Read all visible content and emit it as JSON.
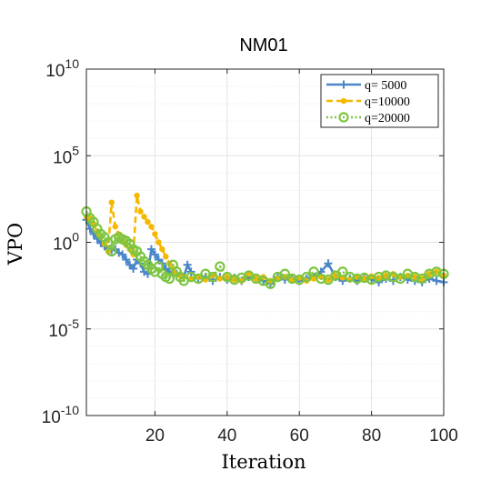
{
  "chart_data": {
    "type": "line",
    "title": "NM01",
    "xlabel": "Iteration",
    "ylabel": "VPO",
    "yscale": "log",
    "xlim": [
      1,
      100
    ],
    "ylim": [
      1e-10,
      10000000000.0
    ],
    "xticks": [
      20,
      40,
      60,
      80,
      100
    ],
    "yticks": [
      {
        "base": "10",
        "exp": "10"
      },
      {
        "base": "10",
        "exp": "5"
      },
      {
        "base": "10",
        "exp": "0"
      },
      {
        "base": "10",
        "exp": "-5"
      },
      {
        "base": "10",
        "exp": "-10"
      }
    ],
    "grid": true,
    "minor_grid": true,
    "legend_position": "top-right",
    "series": [
      {
        "name": "q= 5000",
        "color": "#4a86c8",
        "marker": "plus",
        "line": "solid",
        "points": [
          [
            1,
            20
          ],
          [
            2,
            6
          ],
          [
            3,
            3
          ],
          [
            4,
            1.6
          ],
          [
            5,
            0.9
          ],
          [
            6,
            0.6
          ],
          [
            7,
            0.4
          ],
          [
            8,
            0.35
          ],
          [
            9,
            0.4
          ],
          [
            10,
            0.25
          ],
          [
            11,
            0.2
          ],
          [
            12,
            0.1
          ],
          [
            13,
            0.05
          ],
          [
            14,
            0.03
          ],
          [
            15,
            0.1
          ],
          [
            16,
            0.06
          ],
          [
            17,
            0.02
          ],
          [
            18,
            0.015
          ],
          [
            19,
            0.4
          ],
          [
            20,
            0.2
          ],
          [
            21,
            0.1
          ],
          [
            22,
            0.06
          ],
          [
            23,
            0.03
          ],
          [
            24,
            0.02
          ],
          [
            25,
            0.015
          ],
          [
            26,
            0.015
          ],
          [
            27,
            0.012
          ],
          [
            28,
            0.01
          ],
          [
            29,
            0.05
          ],
          [
            30,
            0.02
          ],
          [
            32,
            0.008
          ],
          [
            34,
            0.01
          ],
          [
            36,
            0.006
          ],
          [
            38,
            0.01
          ],
          [
            40,
            0.007
          ],
          [
            42,
            0.009
          ],
          [
            44,
            0.006
          ],
          [
            46,
            0.01
          ],
          [
            48,
            0.008
          ],
          [
            50,
            0.006
          ],
          [
            52,
            0.004
          ],
          [
            54,
            0.01
          ],
          [
            56,
            0.007
          ],
          [
            58,
            0.009
          ],
          [
            60,
            0.006
          ],
          [
            62,
            0.008
          ],
          [
            64,
            0.01
          ],
          [
            66,
            0.02
          ],
          [
            68,
            0.06
          ],
          [
            70,
            0.01
          ],
          [
            72,
            0.006
          ],
          [
            74,
            0.008
          ],
          [
            76,
            0.006
          ],
          [
            78,
            0.01
          ],
          [
            80,
            0.007
          ],
          [
            82,
            0.005
          ],
          [
            84,
            0.008
          ],
          [
            86,
            0.006
          ],
          [
            88,
            0.01
          ],
          [
            90,
            0.007
          ],
          [
            92,
            0.006
          ],
          [
            94,
            0.005
          ],
          [
            96,
            0.008
          ],
          [
            98,
            0.006
          ],
          [
            100,
            0.005
          ]
        ]
      },
      {
        "name": "q=10000",
        "color": "#f5b800",
        "marker": "dot",
        "line": "dashed",
        "points": [
          [
            1,
            30
          ],
          [
            2,
            25
          ],
          [
            3,
            12
          ],
          [
            4,
            4
          ],
          [
            5,
            2
          ],
          [
            6,
            0.8
          ],
          [
            7,
            0.3
          ],
          [
            8,
            200
          ],
          [
            9,
            8
          ],
          [
            10,
            3
          ],
          [
            11,
            1.5
          ],
          [
            12,
            0.7
          ],
          [
            13,
            0.4
          ],
          [
            14,
            0.2
          ],
          [
            15,
            500
          ],
          [
            16,
            60
          ],
          [
            17,
            30
          ],
          [
            18,
            15
          ],
          [
            19,
            8
          ],
          [
            20,
            3
          ],
          [
            21,
            1
          ],
          [
            22,
            0.4
          ],
          [
            23,
            0.15
          ],
          [
            24,
            0.06
          ],
          [
            25,
            0.03
          ],
          [
            26,
            0.015
          ],
          [
            27,
            0.012
          ],
          [
            28,
            0.01
          ],
          [
            30,
            0.008
          ],
          [
            32,
            0.01
          ],
          [
            34,
            0.007
          ],
          [
            36,
            0.012
          ],
          [
            38,
            0.008
          ],
          [
            40,
            0.01
          ],
          [
            42,
            0.007
          ],
          [
            44,
            0.006
          ],
          [
            46,
            0.015
          ],
          [
            48,
            0.008
          ],
          [
            50,
            0.01
          ],
          [
            52,
            0.006
          ],
          [
            54,
            0.008
          ],
          [
            56,
            0.01
          ],
          [
            58,
            0.007
          ],
          [
            60,
            0.009
          ],
          [
            62,
            0.006
          ],
          [
            64,
            0.008
          ],
          [
            66,
            0.01
          ],
          [
            68,
            0.007
          ],
          [
            70,
            0.012
          ],
          [
            72,
            0.009
          ],
          [
            74,
            0.007
          ],
          [
            76,
            0.01
          ],
          [
            78,
            0.008
          ],
          [
            80,
            0.011
          ],
          [
            82,
            0.009
          ],
          [
            84,
            0.012
          ],
          [
            86,
            0.015
          ],
          [
            88,
            0.01
          ],
          [
            90,
            0.012
          ],
          [
            92,
            0.01
          ],
          [
            94,
            0.008
          ],
          [
            96,
            0.015
          ],
          [
            98,
            0.02
          ],
          [
            100,
            0.012
          ]
        ]
      },
      {
        "name": "q=20000",
        "color": "#7dc540",
        "marker": "circle",
        "line": "dotted",
        "points": [
          [
            1,
            60
          ],
          [
            2,
            25
          ],
          [
            3,
            15
          ],
          [
            4,
            6
          ],
          [
            5,
            3
          ],
          [
            6,
            2
          ],
          [
            7,
            1
          ],
          [
            8,
            0.3
          ],
          [
            9,
            1.5
          ],
          [
            10,
            2
          ],
          [
            11,
            1.5
          ],
          [
            12,
            1.2
          ],
          [
            13,
            0.8
          ],
          [
            14,
            0.4
          ],
          [
            15,
            0.3
          ],
          [
            16,
            0.15
          ],
          [
            17,
            0.08
          ],
          [
            18,
            0.05
          ],
          [
            19,
            0.03
          ],
          [
            20,
            0.02
          ],
          [
            21,
            0.04
          ],
          [
            22,
            0.015
          ],
          [
            23,
            0.01
          ],
          [
            24,
            0.008
          ],
          [
            25,
            0.05
          ],
          [
            26,
            0.02
          ],
          [
            27,
            0.01
          ],
          [
            28,
            0.006
          ],
          [
            30,
            0.01
          ],
          [
            32,
            0.008
          ],
          [
            34,
            0.015
          ],
          [
            36,
            0.01
          ],
          [
            38,
            0.04
          ],
          [
            40,
            0.01
          ],
          [
            42,
            0.007
          ],
          [
            44,
            0.009
          ],
          [
            46,
            0.012
          ],
          [
            48,
            0.008
          ],
          [
            50,
            0.006
          ],
          [
            52,
            0.004
          ],
          [
            54,
            0.01
          ],
          [
            56,
            0.015
          ],
          [
            58,
            0.008
          ],
          [
            60,
            0.007
          ],
          [
            62,
            0.01
          ],
          [
            64,
            0.02
          ],
          [
            66,
            0.008
          ],
          [
            68,
            0.007
          ],
          [
            70,
            0.012
          ],
          [
            72,
            0.02
          ],
          [
            74,
            0.01
          ],
          [
            76,
            0.008
          ],
          [
            78,
            0.009
          ],
          [
            80,
            0.007
          ],
          [
            82,
            0.01
          ],
          [
            84,
            0.012
          ],
          [
            86,
            0.01
          ],
          [
            88,
            0.008
          ],
          [
            90,
            0.015
          ],
          [
            92,
            0.01
          ],
          [
            94,
            0.008
          ],
          [
            96,
            0.015
          ],
          [
            98,
            0.02
          ],
          [
            100,
            0.015
          ]
        ]
      }
    ]
  }
}
